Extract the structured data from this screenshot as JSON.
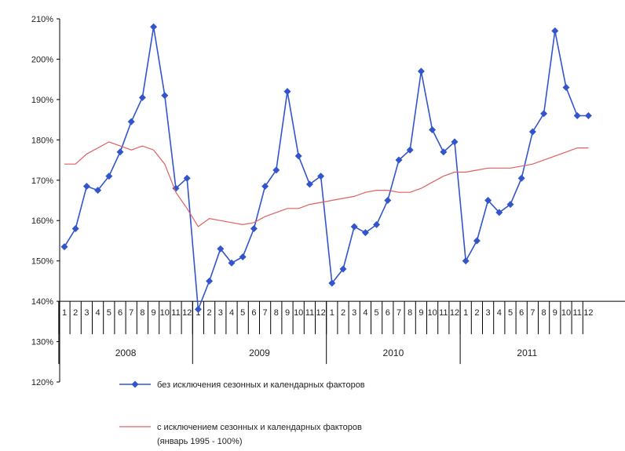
{
  "chart_data": {
    "type": "line",
    "title": "",
    "xlabel": "",
    "ylabel": "",
    "ylim": [
      120,
      210
    ],
    "y_ticks": [
      "120%",
      "130%",
      "140%",
      "150%",
      "160%",
      "170%",
      "180%",
      "190%",
      "200%",
      "210%"
    ],
    "month_labels": [
      "1",
      "2",
      "3",
      "4",
      "5",
      "6",
      "7",
      "8",
      "9",
      "10",
      "11",
      "12"
    ],
    "years": [
      "2008",
      "2009",
      "2010",
      "2011"
    ],
    "series": [
      {
        "name": "без исключения сезонных и календарных факторов",
        "color": "#3355cc",
        "marker": "diamond",
        "values": [
          153.5,
          158,
          168.5,
          167.5,
          171,
          177,
          184.5,
          190.5,
          208,
          191,
          168,
          170.5,
          138,
          145,
          153,
          149.5,
          151,
          158,
          168.5,
          172.5,
          192,
          176,
          169,
          171,
          144.5,
          148,
          158.5,
          157,
          159,
          165,
          175,
          177.5,
          197,
          182.5,
          177,
          179.5,
          150,
          155,
          165,
          162,
          164,
          170.5,
          182,
          186.5,
          207,
          193,
          186,
          186
        ]
      },
      {
        "name": "с исключением сезонных и календарных факторов",
        "name_line2": "(январь 1995 - 100%)",
        "color": "#e06060",
        "values": [
          174,
          174,
          176.5,
          178,
          179.5,
          178.5,
          177.5,
          178.5,
          177.5,
          174,
          167,
          163,
          158.5,
          160.5,
          160,
          159.5,
          159,
          159.5,
          161,
          162,
          163,
          163,
          164,
          164.5,
          165,
          165.5,
          166,
          167,
          167.5,
          167.5,
          167,
          167,
          168,
          169.5,
          171,
          172,
          172,
          172.5,
          173,
          173,
          173,
          173.5,
          174,
          175,
          176,
          177,
          178,
          178
        ]
      }
    ],
    "legend_position": "bottom"
  }
}
